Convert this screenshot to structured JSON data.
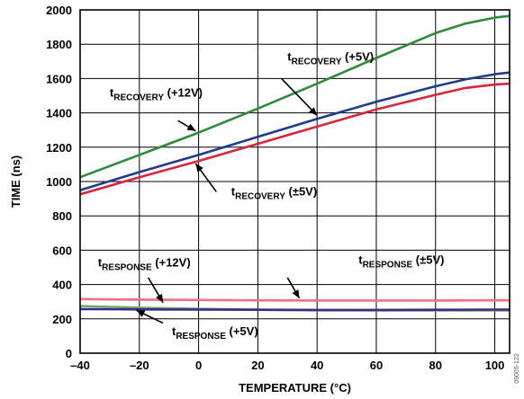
{
  "figure_id": "09005-122",
  "chart_data": {
    "type": "line",
    "xlabel": "TEMPERATURE (°C)",
    "ylabel": "TIME (ns)",
    "xlim": [
      -40,
      105
    ],
    "ylim": [
      0,
      2000
    ],
    "xticks": [
      -40,
      -20,
      0,
      20,
      40,
      60,
      80,
      100
    ],
    "xtick_labels": [
      "–40",
      "–20",
      "0",
      "20",
      "40",
      "60",
      "80",
      "100"
    ],
    "yticks": [
      0,
      200,
      400,
      600,
      800,
      1000,
      1200,
      1400,
      1600,
      1800,
      2000
    ],
    "grid": true,
    "series": [
      {
        "id": "recovery_12v",
        "color": "#2e8b3e",
        "points": [
          [
            -40,
            1025
          ],
          [
            -20,
            1155
          ],
          [
            0,
            1285
          ],
          [
            20,
            1425
          ],
          [
            40,
            1570
          ],
          [
            60,
            1720
          ],
          [
            80,
            1865
          ],
          [
            90,
            1920
          ],
          [
            100,
            1955
          ],
          [
            105,
            1965
          ]
        ]
      },
      {
        "id": "recovery_5v",
        "color": "#1f3c88",
        "points": [
          [
            -40,
            950
          ],
          [
            -20,
            1055
          ],
          [
            0,
            1155
          ],
          [
            20,
            1260
          ],
          [
            40,
            1365
          ],
          [
            60,
            1465
          ],
          [
            80,
            1555
          ],
          [
            90,
            1595
          ],
          [
            100,
            1625
          ],
          [
            105,
            1635
          ]
        ]
      },
      {
        "id": "recovery_pm5v",
        "color": "#d7263d",
        "points": [
          [
            -40,
            925
          ],
          [
            -20,
            1025
          ],
          [
            0,
            1120
          ],
          [
            20,
            1220
          ],
          [
            40,
            1320
          ],
          [
            60,
            1420
          ],
          [
            80,
            1505
          ],
          [
            90,
            1545
          ],
          [
            100,
            1565
          ],
          [
            105,
            1570
          ]
        ]
      },
      {
        "id": "response_pm5v",
        "color": "#f07080",
        "points": [
          [
            -40,
            315
          ],
          [
            -20,
            312
          ],
          [
            0,
            310
          ],
          [
            20,
            308
          ],
          [
            40,
            307
          ],
          [
            60,
            307
          ],
          [
            80,
            307
          ],
          [
            100,
            308
          ],
          [
            105,
            308
          ]
        ]
      },
      {
        "id": "response_12v",
        "color": "#6fa86a",
        "points": [
          [
            -40,
            275
          ],
          [
            -20,
            265
          ],
          [
            0,
            258
          ],
          [
            20,
            253
          ],
          [
            40,
            250
          ],
          [
            60,
            249
          ],
          [
            80,
            249
          ],
          [
            100,
            249
          ],
          [
            105,
            249
          ]
        ]
      },
      {
        "id": "response_5v",
        "color": "#3b2a8a",
        "points": [
          [
            -40,
            257
          ],
          [
            -20,
            255
          ],
          [
            0,
            254
          ],
          [
            20,
            253
          ],
          [
            40,
            252
          ],
          [
            60,
            252
          ],
          [
            80,
            253
          ],
          [
            100,
            254
          ],
          [
            105,
            254
          ]
        ]
      }
    ],
    "annotations": [
      {
        "main": "t",
        "sub": "RECOVERY",
        "suffix": " (+12V)",
        "anchor": [
          -30,
          1495
        ],
        "arrow_from": [
          -7,
          1355
        ],
        "arrow_to": [
          -1,
          1295
        ]
      },
      {
        "main": "t",
        "sub": "RECOVERY",
        "suffix": " (+5V)",
        "anchor": [
          30,
          1705
        ],
        "arrow_from": [
          28,
          1600
        ],
        "arrow_to": [
          40,
          1385
        ]
      },
      {
        "main": "t",
        "sub": "RECOVERY",
        "suffix": " (±5V)",
        "anchor": [
          11,
          920
        ],
        "arrow_from": [
          6,
          940
        ],
        "arrow_to": [
          -1,
          1105
        ]
      },
      {
        "main": "t",
        "sub": "RESPONSE",
        "suffix": " (+12V)",
        "anchor": [
          -34,
          505
        ],
        "arrow_from": [
          -17,
          440
        ],
        "arrow_to": [
          -12,
          295
        ]
      },
      {
        "main": "t",
        "sub": "RESPONSE",
        "suffix": " (±5V)",
        "anchor": [
          54,
          520
        ],
        "arrow_from": [
          30,
          440
        ],
        "arrow_to": [
          34,
          320
        ]
      },
      {
        "main": "t",
        "sub": "RESPONSE",
        "suffix": " (+5V)",
        "anchor": [
          -9,
          105
        ],
        "arrow_from": [
          -12,
          175
        ],
        "arrow_to": [
          -21,
          250
        ]
      }
    ]
  }
}
